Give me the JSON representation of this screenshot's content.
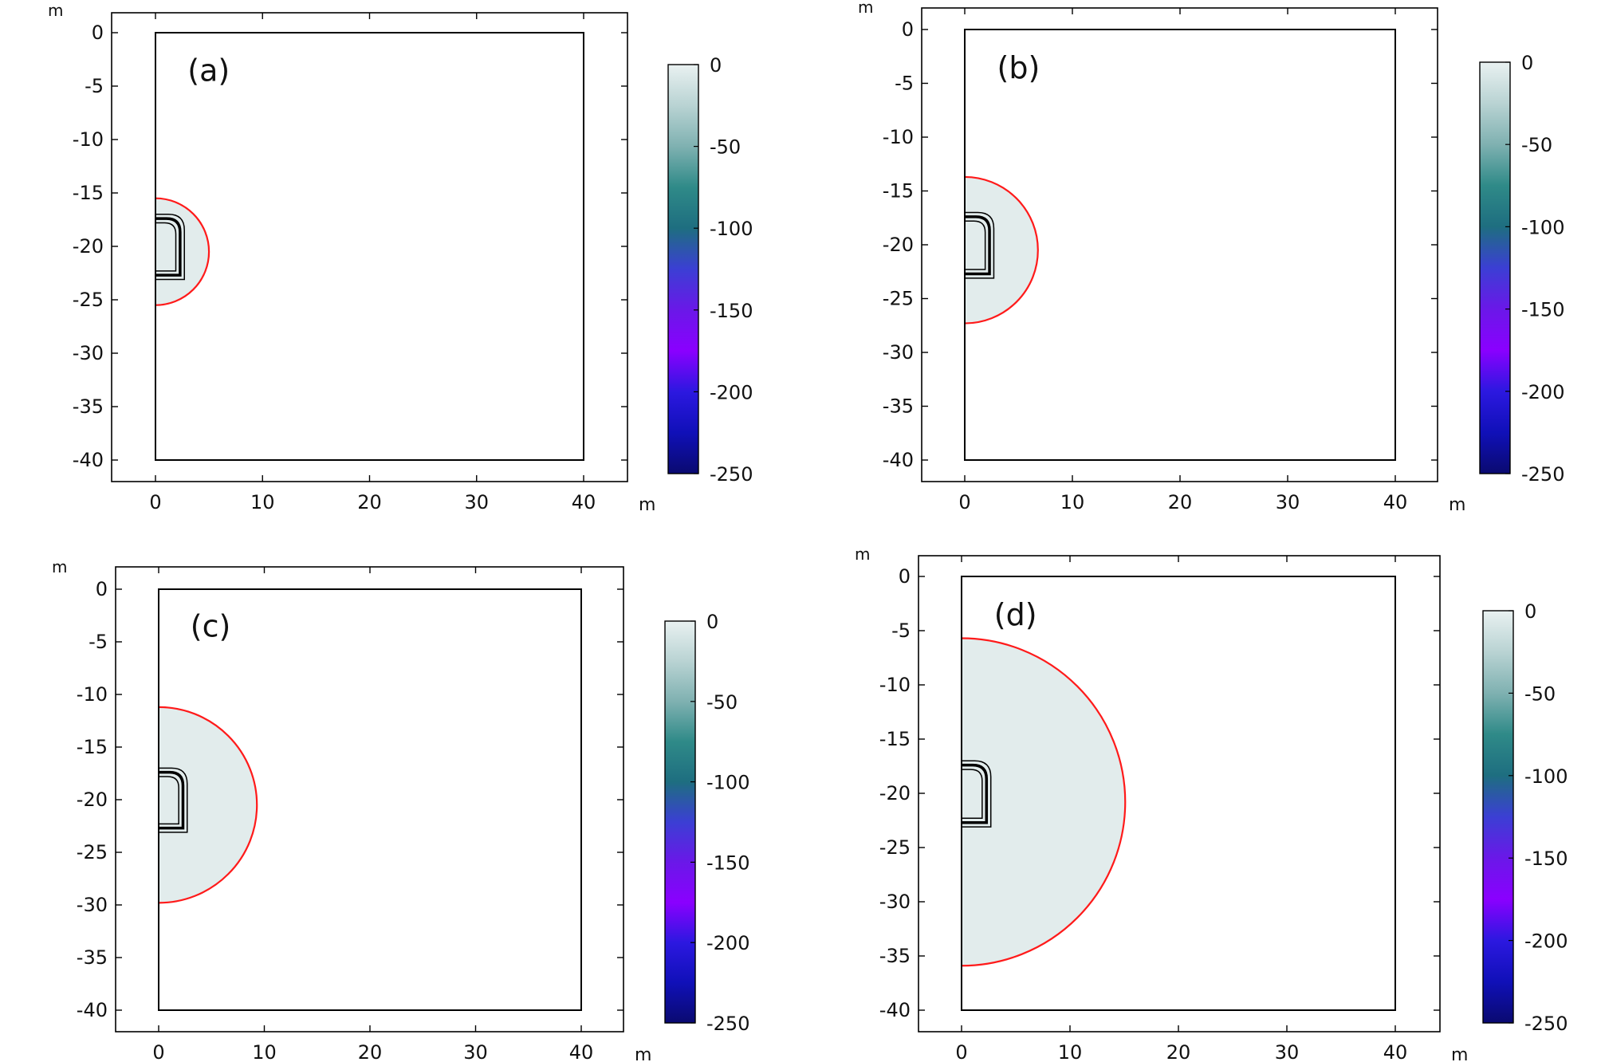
{
  "chart_data": [
    {
      "type": "heatmap",
      "panel_label": "(a)",
      "x_unit": "m",
      "y_unit": "m",
      "xlim": [
        -4,
        44
      ],
      "ylim": [
        -42,
        2
      ],
      "x_ticks": [
        "0",
        "10",
        "20",
        "30",
        "40"
      ],
      "y_ticks": [
        "0",
        "-5",
        "-10",
        "-15",
        "-20",
        "-25",
        "-30",
        "-35",
        "-40"
      ],
      "domain": {
        "x": [
          0,
          40
        ],
        "y": [
          -40,
          0
        ]
      },
      "frozen_zone": {
        "center": [
          0,
          -20.5
        ],
        "radius": 5.0
      },
      "colorbar": {
        "range": [
          -250,
          0
        ],
        "ticks": [
          "0",
          "-50",
          "-100",
          "-150",
          "-200",
          "-250"
        ]
      }
    },
    {
      "type": "heatmap",
      "panel_label": "(b)",
      "x_unit": "m",
      "y_unit": "m",
      "xlim": [
        -4,
        44
      ],
      "ylim": [
        -42,
        2
      ],
      "x_ticks": [
        "0",
        "10",
        "20",
        "30",
        "40"
      ],
      "y_ticks": [
        "0",
        "-5",
        "-10",
        "-15",
        "-20",
        "-25",
        "-30",
        "-35",
        "-40"
      ],
      "domain": {
        "x": [
          0,
          40
        ],
        "y": [
          -40,
          0
        ]
      },
      "frozen_zone": {
        "center": [
          0,
          -20.5
        ],
        "radius": 6.8
      },
      "colorbar": {
        "range": [
          -250,
          0
        ],
        "ticks": [
          "0",
          "-50",
          "-100",
          "-150",
          "-200",
          "-250"
        ]
      }
    },
    {
      "type": "heatmap",
      "panel_label": "(c)",
      "x_unit": "m",
      "y_unit": "m",
      "xlim": [
        -4,
        44
      ],
      "ylim": [
        -42,
        2
      ],
      "x_ticks": [
        "0",
        "10",
        "20",
        "30",
        "40"
      ],
      "y_ticks": [
        "0",
        "-5",
        "-10",
        "-15",
        "-20",
        "-25",
        "-30",
        "-35",
        "-40"
      ],
      "domain": {
        "x": [
          0,
          40
        ],
        "y": [
          -40,
          0
        ]
      },
      "frozen_zone": {
        "center": [
          0,
          -20.5
        ],
        "radius": 9.3
      },
      "colorbar": {
        "range": [
          -250,
          0
        ],
        "ticks": [
          "0",
          "-50",
          "-100",
          "-150",
          "-200",
          "-250"
        ]
      }
    },
    {
      "type": "heatmap",
      "panel_label": "(d)",
      "x_unit": "m",
      "y_unit": "m",
      "xlim": [
        -4,
        44
      ],
      "ylim": [
        -42,
        2
      ],
      "x_ticks": [
        "0",
        "10",
        "20",
        "30",
        "40"
      ],
      "y_ticks": [
        "0",
        "-5",
        "-10",
        "-15",
        "-20",
        "-25",
        "-30",
        "-35",
        "-40"
      ],
      "domain": {
        "x": [
          0,
          40
        ],
        "y": [
          -40,
          0
        ]
      },
      "frozen_zone": {
        "center": [
          0,
          -20.8
        ],
        "radius": 15.1
      },
      "colorbar": {
        "range": [
          -250,
          0
        ],
        "ticks": [
          "0",
          "-50",
          "-100",
          "-150",
          "-200",
          "-250"
        ]
      }
    }
  ],
  "colors": {
    "frozen_fill": "#e2ecec",
    "frozen_boundary": "#ff1a1a",
    "domain_line": "#000000",
    "colormap": [
      "#e9f1f1",
      "#b9d3d3",
      "#7fb1b1",
      "#2f8a88",
      "#1e6e80",
      "#3b3fd4",
      "#6a18e8",
      "#8a00ff",
      "#2c18e0",
      "#1010b8",
      "#0a0a70"
    ]
  }
}
